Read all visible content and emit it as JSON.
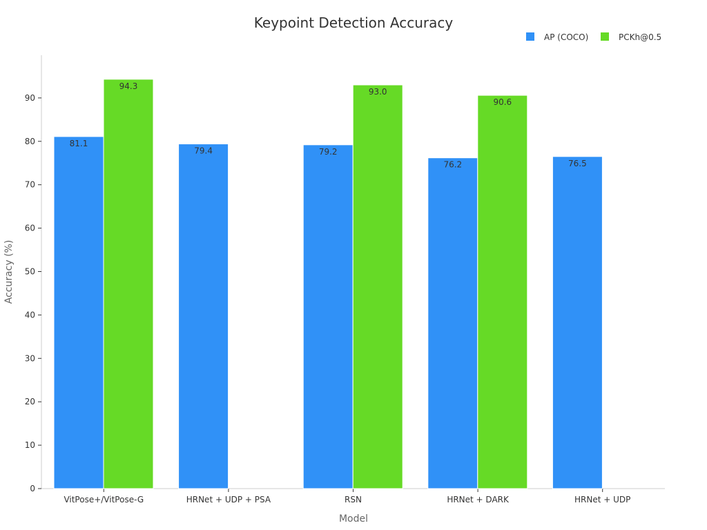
{
  "chart_data": {
    "type": "bar",
    "title": "Keypoint Detection Accuracy",
    "xlabel": "Model",
    "ylabel": "Accuracy (%)",
    "ylim": [
      0,
      100
    ],
    "yticks": [
      0,
      10,
      20,
      30,
      40,
      50,
      60,
      70,
      80,
      90
    ],
    "grid": false,
    "legend_position": "top-right",
    "categories": [
      "VitPose+/VitPose-G",
      "HRNet + UDP + PSA",
      "RSN",
      "HRNet + DARK",
      "HRNet + UDP"
    ],
    "series": [
      {
        "name": "AP (COCO)",
        "color": "#3091F7",
        "values": [
          81.1,
          79.4,
          79.2,
          76.2,
          76.5
        ]
      },
      {
        "name": "PCKh@0.5",
        "color": "#66DA26",
        "values": [
          94.3,
          null,
          93.0,
          90.6,
          null
        ]
      }
    ]
  }
}
